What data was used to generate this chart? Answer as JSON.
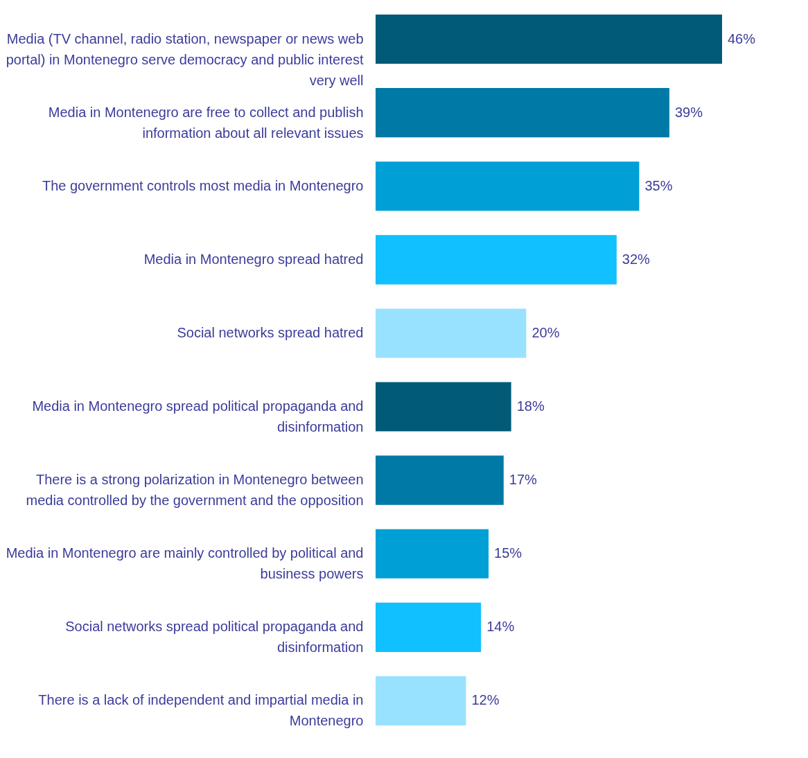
{
  "chart_data": {
    "type": "bar",
    "orientation": "horizontal",
    "categories": [
      "Media (TV channel, radio station, newspaper or news web portal) in Montenegro serve democracy and public interest very well",
      "Media in Montenegro are free to collect and publish information about all relevant issues",
      "The government controls most media in Montenegro",
      "Media in Montenegro spread hatred",
      "Social networks spread hatred",
      "Media in Montenegro spread political propaganda and disinformation",
      "There is a strong polarization in Montenegro between media controlled by the government and the opposition",
      "Media in Montenegro are mainly controlled by political and business powers",
      "Social networks spread political propaganda and disinformation",
      "There is a lack of independent and impartial media in Montenegro"
    ],
    "values": [
      46,
      39,
      35,
      32,
      20,
      18,
      17,
      15,
      14,
      12
    ],
    "value_labels": [
      "46%",
      "39%",
      "35%",
      "32%",
      "20%",
      "18%",
      "17%",
      "15%",
      "14%",
      "12%"
    ],
    "colors": [
      "#005a78",
      "#0079a6",
      "#00a0d6",
      "#10c0ff",
      "#99e2ff",
      "#005a78",
      "#0079a6",
      "#00a0d6",
      "#10c0ff",
      "#99e2ff"
    ]
  }
}
